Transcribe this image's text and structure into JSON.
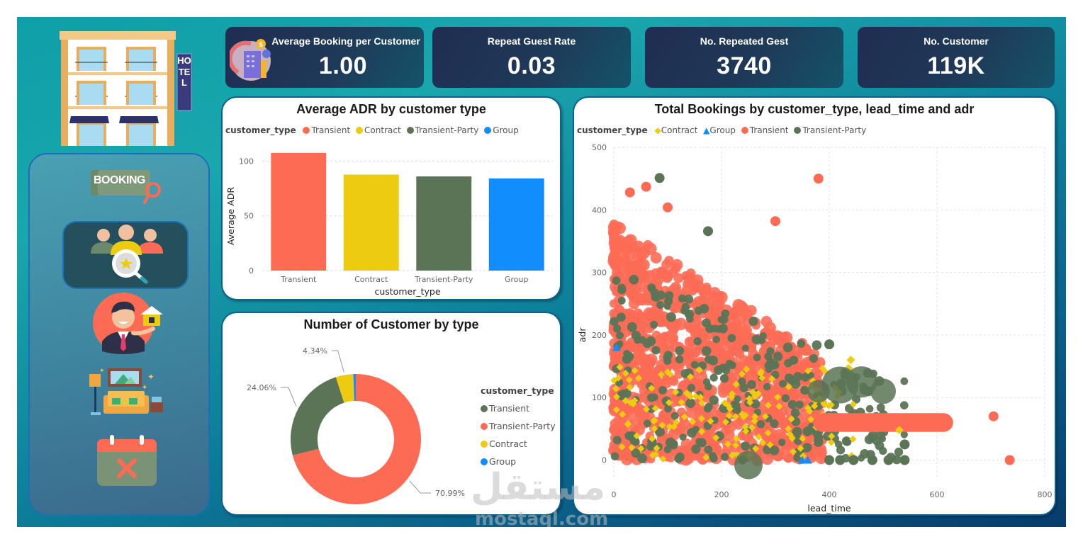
{
  "kpis": [
    {
      "title": "Average Booking per Customer",
      "value": "1.00",
      "icon": "hotel-booking-icon"
    },
    {
      "title": "Repeat Guest Rate",
      "value": "0.03"
    },
    {
      "title": "No. Repeated Gest",
      "value": "3740"
    },
    {
      "title": "No. Customer",
      "value": "119K"
    }
  ],
  "sidebar": {
    "logo_icon": "hotel-building-icon",
    "hotel_sign": "HOTEL",
    "items": [
      {
        "name": "booking",
        "label": "BOOKING",
        "icon": "booking-search-icon"
      },
      {
        "name": "customers",
        "icon": "customer-search-icon",
        "active": true
      },
      {
        "name": "agent",
        "icon": "real-estate-agent-icon"
      },
      {
        "name": "rooms",
        "icon": "living-room-icon"
      },
      {
        "name": "cancellations",
        "icon": "calendar-cancel-icon"
      }
    ]
  },
  "colors": {
    "transient": "#fd6b55",
    "contract": "#eccb10",
    "transient_party": "#5b7455",
    "group": "#118dfe"
  },
  "watermark": {
    "arabic": "مستقل",
    "latin": "mostaql.com"
  },
  "chart_data": [
    {
      "id": "adr-bar",
      "type": "bar",
      "title": "Average ADR by customer type",
      "legend_title": "customer_type",
      "legend": [
        "Transient",
        "Contract",
        "Transient-Party",
        "Group"
      ],
      "categories": [
        "Transient",
        "Contract",
        "Transient-Party",
        "Group"
      ],
      "values": [
        107.5,
        87.7,
        86.0,
        84.2
      ],
      "xlabel": "customer_type",
      "ylabel": "Average ADR",
      "ylim": [
        0,
        110
      ],
      "yticks": [
        0,
        50,
        100
      ],
      "grid": true,
      "legend_position": "top-left"
    },
    {
      "id": "customer-donut",
      "type": "pie",
      "title": "Number of Customer by type",
      "legend_title": "customer_type",
      "legend": [
        "Transient",
        "Transient-Party",
        "Contract",
        "Group"
      ],
      "categories": [
        "Transient",
        "Transient-Party",
        "Contract",
        "Group"
      ],
      "values": [
        70.99,
        24.06,
        4.34,
        0.61
      ],
      "labels": [
        "70.99%",
        "24.06%",
        "4.34%",
        ""
      ],
      "donut": true,
      "legend_position": "right"
    },
    {
      "id": "bookings-scatter",
      "type": "scatter",
      "title": "Total Bookings by customer_type, lead_time and adr",
      "legend_title": "customer_type",
      "legend": [
        {
          "name": "Contract",
          "marker": "diamond"
        },
        {
          "name": "Group",
          "marker": "triangle"
        },
        {
          "name": "Transient",
          "marker": "circle"
        },
        {
          "name": "Transient-Party",
          "marker": "circle"
        }
      ],
      "xlabel": "lead_time",
      "ylabel": "adr",
      "xlim": [
        0,
        800
      ],
      "ylim": [
        -30,
        500
      ],
      "xticks": [
        0,
        200,
        400,
        600,
        800
      ],
      "yticks": [
        0,
        100,
        200,
        300,
        400,
        500
      ],
      "grid": true,
      "legend_position": "top-left",
      "notable_points": [
        {
          "series": "Transient-Party",
          "x": 85,
          "y": 451
        },
        {
          "series": "Transient",
          "x": 380,
          "y": 450
        },
        {
          "series": "Transient",
          "x": 30,
          "y": 428
        },
        {
          "series": "Transient",
          "x": 60,
          "y": 437
        },
        {
          "series": "Transient",
          "x": 100,
          "y": 404
        },
        {
          "series": "Transient",
          "x": 300,
          "y": 382
        },
        {
          "series": "Transient-Party",
          "x": 175,
          "y": 366
        },
        {
          "series": "Transient",
          "x": 705,
          "y": 70
        },
        {
          "series": "Transient",
          "x": 735,
          "y": 0
        },
        {
          "series": "Contract",
          "x": 440,
          "y": 160
        },
        {
          "series": "Contract",
          "x": 530,
          "y": 48
        },
        {
          "series": "Transient-Party",
          "x": 540,
          "y": 25
        },
        {
          "series": "Transient-Party",
          "x": 540,
          "y": 0
        },
        {
          "series": "Transient-Party",
          "x": 510,
          "y": 0
        },
        {
          "series": "Transient-Party",
          "x": 480,
          "y": 0
        },
        {
          "series": "Transient-Party",
          "x": 445,
          "y": 0
        },
        {
          "series": "Transient-Party",
          "x": 420,
          "y": 0
        },
        {
          "series": "Transient-Party",
          "x": 400,
          "y": 0
        },
        {
          "series": "Transient-Party",
          "x": 400,
          "y": 185
        },
        {
          "series": "Group",
          "x": 360,
          "y": 0
        },
        {
          "series": "Group",
          "x": 350,
          "y": 0
        },
        {
          "series": "Group",
          "x": 5,
          "y": 180
        }
      ]
    }
  ]
}
